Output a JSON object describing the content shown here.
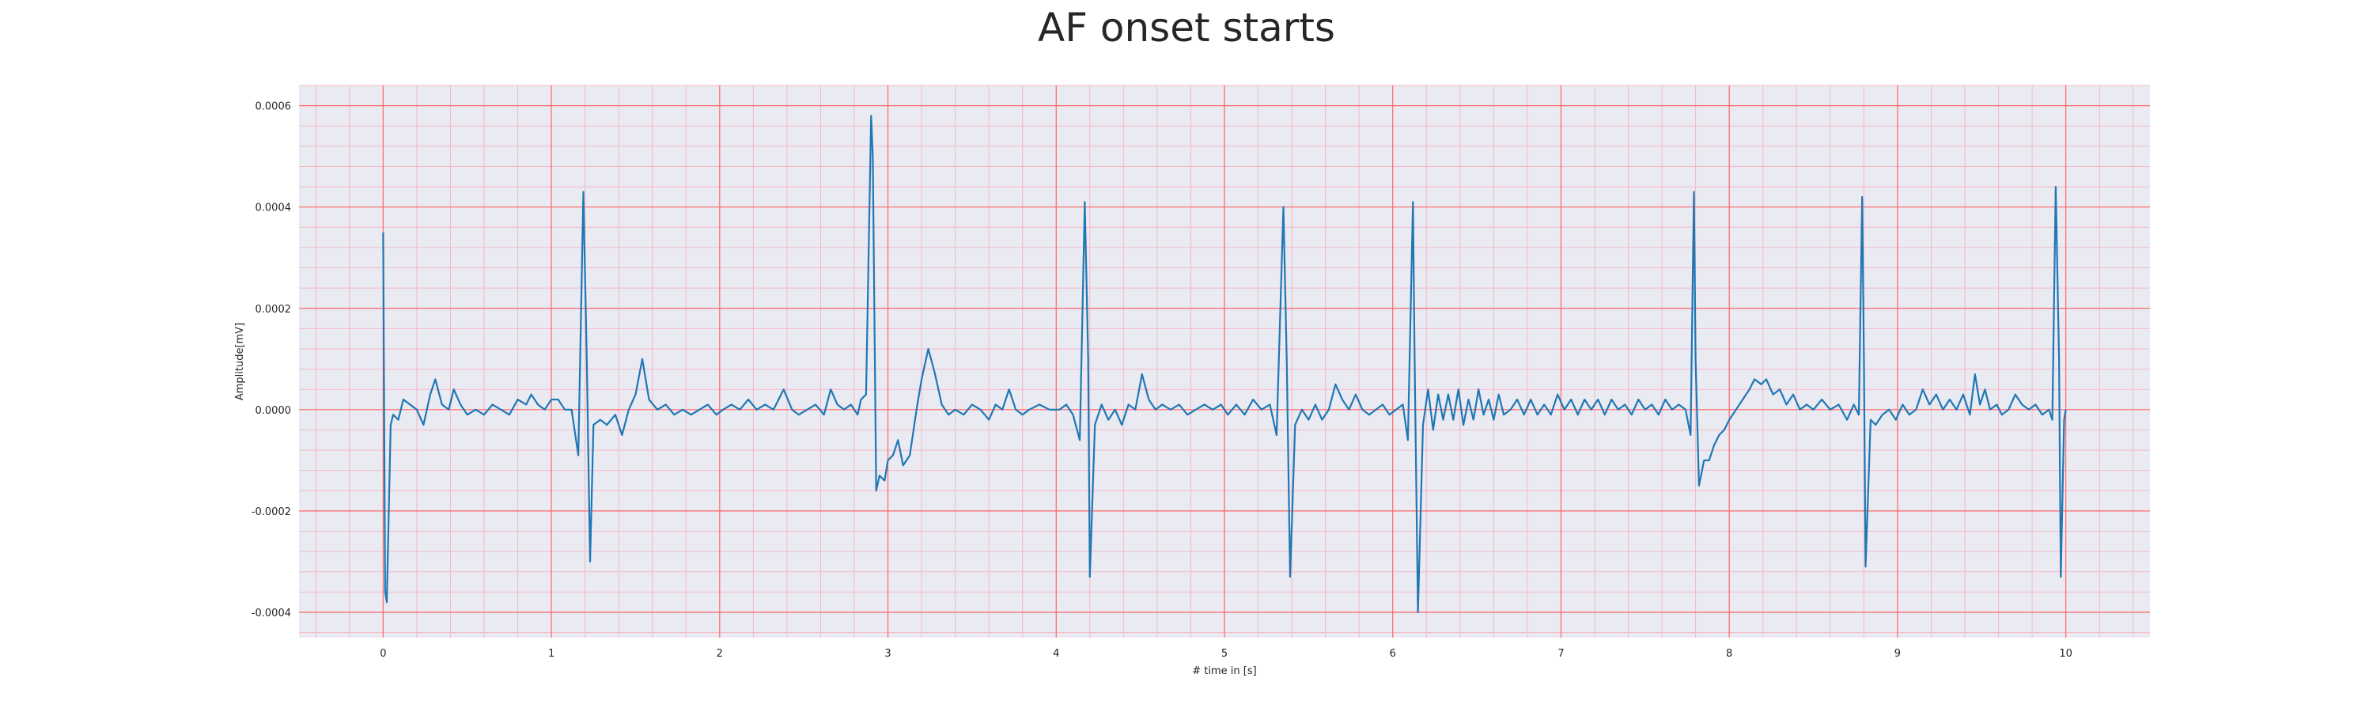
{
  "chart_data": {
    "type": "line",
    "title": "AF onset starts",
    "xlabel": "# time in [s]",
    "ylabel": "Amplitude[mV]",
    "xlim": [
      -0.5,
      10.5
    ],
    "ylim": [
      -0.00045,
      0.00064
    ],
    "xticks": [
      "0",
      "1",
      "2",
      "3",
      "4",
      "5",
      "6",
      "7",
      "8",
      "9",
      "10"
    ],
    "yticks": [
      "-0.0004",
      "-0.0002",
      "0.0000",
      "0.0002",
      "0.0004",
      "0.0006"
    ],
    "grid": true,
    "minor_grid": true,
    "colors": {
      "line": "#1f77b4",
      "background": "#eaeaf2",
      "major_grid": "#ff6666",
      "minor_grid": "#f4b8c4"
    },
    "series": [
      {
        "points": [
          [
            0.0,
            0.00035
          ],
          [
            0.012,
            -0.00036
          ],
          [
            0.022,
            -0.00038
          ],
          [
            0.045,
            -3e-05
          ],
          [
            0.06,
            -1e-05
          ],
          [
            0.09,
            -2e-05
          ],
          [
            0.12,
            2e-05
          ],
          [
            0.16,
            1e-05
          ],
          [
            0.2,
            0.0
          ],
          [
            0.24,
            -3e-05
          ],
          [
            0.28,
            3e-05
          ],
          [
            0.31,
            6e-05
          ],
          [
            0.35,
            1e-05
          ],
          [
            0.39,
            0.0
          ],
          [
            0.42,
            4e-05
          ],
          [
            0.46,
            1e-05
          ],
          [
            0.5,
            -1e-05
          ],
          [
            0.55,
            0.0
          ],
          [
            0.6,
            -1e-05
          ],
          [
            0.65,
            1e-05
          ],
          [
            0.7,
            0.0
          ],
          [
            0.75,
            -1e-05
          ],
          [
            0.8,
            2e-05
          ],
          [
            0.85,
            1e-05
          ],
          [
            0.88,
            3e-05
          ],
          [
            0.92,
            1e-05
          ],
          [
            0.96,
            0.0
          ],
          [
            1.0,
            2e-05
          ],
          [
            1.04,
            2e-05
          ],
          [
            1.08,
            0.0
          ],
          [
            1.12,
            0.0
          ],
          [
            1.16,
            -9e-05
          ],
          [
            1.19,
            0.00043
          ],
          [
            1.21,
            0.0001
          ],
          [
            1.23,
            -0.0003
          ],
          [
            1.25,
            -3e-05
          ],
          [
            1.29,
            -2e-05
          ],
          [
            1.33,
            -3e-05
          ],
          [
            1.38,
            -1e-05
          ],
          [
            1.42,
            -5e-05
          ],
          [
            1.46,
            0.0
          ],
          [
            1.5,
            3e-05
          ],
          [
            1.54,
            0.0001
          ],
          [
            1.58,
            2e-05
          ],
          [
            1.63,
            0.0
          ],
          [
            1.68,
            1e-05
          ],
          [
            1.73,
            -1e-05
          ],
          [
            1.78,
            0.0
          ],
          [
            1.83,
            -1e-05
          ],
          [
            1.88,
            0.0
          ],
          [
            1.93,
            1e-05
          ],
          [
            1.98,
            -1e-05
          ],
          [
            2.02,
            0.0
          ],
          [
            2.07,
            1e-05
          ],
          [
            2.12,
            0.0
          ],
          [
            2.17,
            2e-05
          ],
          [
            2.22,
            0.0
          ],
          [
            2.27,
            1e-05
          ],
          [
            2.32,
            0.0
          ],
          [
            2.38,
            4e-05
          ],
          [
            2.43,
            0.0
          ],
          [
            2.47,
            -1e-05
          ],
          [
            2.52,
            0.0
          ],
          [
            2.57,
            1e-05
          ],
          [
            2.62,
            -1e-05
          ],
          [
            2.66,
            4e-05
          ],
          [
            2.7,
            1e-05
          ],
          [
            2.74,
            0.0
          ],
          [
            2.78,
            1e-05
          ],
          [
            2.82,
            -1e-05
          ],
          [
            2.84,
            2e-05
          ],
          [
            2.87,
            3e-05
          ],
          [
            2.9,
            0.00058
          ],
          [
            2.91,
            0.0005
          ],
          [
            2.93,
            -0.00016
          ],
          [
            2.95,
            -0.00013
          ],
          [
            2.98,
            -0.00014
          ],
          [
            3.0,
            -0.0001
          ],
          [
            3.03,
            -9e-05
          ],
          [
            3.06,
            -6e-05
          ],
          [
            3.09,
            -0.00011
          ],
          [
            3.13,
            -9e-05
          ],
          [
            3.17,
            0.0
          ],
          [
            3.2,
            6e-05
          ],
          [
            3.24,
            0.00012
          ],
          [
            3.28,
            7e-05
          ],
          [
            3.32,
            1e-05
          ],
          [
            3.36,
            -1e-05
          ],
          [
            3.4,
            0.0
          ],
          [
            3.45,
            -1e-05
          ],
          [
            3.5,
            1e-05
          ],
          [
            3.55,
            0.0
          ],
          [
            3.6,
            -2e-05
          ],
          [
            3.64,
            1e-05
          ],
          [
            3.68,
            0.0
          ],
          [
            3.72,
            4e-05
          ],
          [
            3.76,
            0.0
          ],
          [
            3.8,
            -1e-05
          ],
          [
            3.84,
            0.0
          ],
          [
            3.9,
            1e-05
          ],
          [
            3.96,
            0.0
          ],
          [
            4.02,
            0.0
          ],
          [
            4.06,
            1e-05
          ],
          [
            4.1,
            -1e-05
          ],
          [
            4.14,
            -6e-05
          ],
          [
            4.17,
            0.00041
          ],
          [
            4.19,
            0.0001
          ],
          [
            4.2,
            -0.00033
          ],
          [
            4.23,
            -3e-05
          ],
          [
            4.27,
            1e-05
          ],
          [
            4.31,
            -2e-05
          ],
          [
            4.35,
            0.0
          ],
          [
            4.39,
            -3e-05
          ],
          [
            4.43,
            1e-05
          ],
          [
            4.47,
            0.0
          ],
          [
            4.51,
            7e-05
          ],
          [
            4.55,
            2e-05
          ],
          [
            4.59,
            0.0
          ],
          [
            4.63,
            1e-05
          ],
          [
            4.68,
            0.0
          ],
          [
            4.73,
            1e-05
          ],
          [
            4.78,
            -1e-05
          ],
          [
            4.83,
            0.0
          ],
          [
            4.88,
            1e-05
          ],
          [
            4.93,
            0.0
          ],
          [
            4.98,
            1e-05
          ],
          [
            5.02,
            -1e-05
          ],
          [
            5.07,
            1e-05
          ],
          [
            5.12,
            -1e-05
          ],
          [
            5.17,
            2e-05
          ],
          [
            5.22,
            0.0
          ],
          [
            5.27,
            1e-05
          ],
          [
            5.31,
            -5e-05
          ],
          [
            5.35,
            0.0004
          ],
          [
            5.37,
            0.0001
          ],
          [
            5.39,
            -0.00033
          ],
          [
            5.42,
            -3e-05
          ],
          [
            5.46,
            0.0
          ],
          [
            5.5,
            -2e-05
          ],
          [
            5.54,
            1e-05
          ],
          [
            5.58,
            -2e-05
          ],
          [
            5.62,
            0.0
          ],
          [
            5.66,
            5e-05
          ],
          [
            5.7,
            2e-05
          ],
          [
            5.74,
            0.0
          ],
          [
            5.78,
            3e-05
          ],
          [
            5.82,
            0.0
          ],
          [
            5.86,
            -1e-05
          ],
          [
            5.9,
            0.0
          ],
          [
            5.94,
            1e-05
          ],
          [
            5.98,
            -1e-05
          ],
          [
            6.02,
            0.0
          ],
          [
            6.06,
            1e-05
          ],
          [
            6.09,
            -6e-05
          ],
          [
            6.12,
            0.00041
          ],
          [
            6.13,
            0.0001
          ],
          [
            6.15,
            -0.0004
          ],
          [
            6.18,
            -3e-05
          ],
          [
            6.21,
            4e-05
          ],
          [
            6.24,
            -4e-05
          ],
          [
            6.27,
            3e-05
          ],
          [
            6.3,
            -2e-05
          ],
          [
            6.33,
            3e-05
          ],
          [
            6.36,
            -2e-05
          ],
          [
            6.39,
            4e-05
          ],
          [
            6.42,
            -3e-05
          ],
          [
            6.45,
            2e-05
          ],
          [
            6.48,
            -2e-05
          ],
          [
            6.51,
            4e-05
          ],
          [
            6.54,
            -1e-05
          ],
          [
            6.57,
            2e-05
          ],
          [
            6.6,
            -2e-05
          ],
          [
            6.63,
            3e-05
          ],
          [
            6.66,
            -1e-05
          ],
          [
            6.7,
            0.0
          ],
          [
            6.74,
            2e-05
          ],
          [
            6.78,
            -1e-05
          ],
          [
            6.82,
            2e-05
          ],
          [
            6.86,
            -1e-05
          ],
          [
            6.9,
            1e-05
          ],
          [
            6.94,
            -1e-05
          ],
          [
            6.98,
            3e-05
          ],
          [
            7.02,
            0.0
          ],
          [
            7.06,
            2e-05
          ],
          [
            7.1,
            -1e-05
          ],
          [
            7.14,
            2e-05
          ],
          [
            7.18,
            0.0
          ],
          [
            7.22,
            2e-05
          ],
          [
            7.26,
            -1e-05
          ],
          [
            7.3,
            2e-05
          ],
          [
            7.34,
            0.0
          ],
          [
            7.38,
            1e-05
          ],
          [
            7.42,
            -1e-05
          ],
          [
            7.46,
            2e-05
          ],
          [
            7.5,
            0.0
          ],
          [
            7.54,
            1e-05
          ],
          [
            7.58,
            -1e-05
          ],
          [
            7.62,
            2e-05
          ],
          [
            7.66,
            0.0
          ],
          [
            7.7,
            1e-05
          ],
          [
            7.74,
            0.0
          ],
          [
            7.77,
            -5e-05
          ],
          [
            7.79,
            0.00043
          ],
          [
            7.8,
            0.0001
          ],
          [
            7.82,
            -0.00015
          ],
          [
            7.85,
            -0.0001
          ],
          [
            7.88,
            -0.0001
          ],
          [
            7.91,
            -7e-05
          ],
          [
            7.94,
            -5e-05
          ],
          [
            7.97,
            -4e-05
          ],
          [
            8.0,
            -2e-05
          ],
          [
            8.04,
            0.0
          ],
          [
            8.08,
            2e-05
          ],
          [
            8.12,
            4e-05
          ],
          [
            8.15,
            6e-05
          ],
          [
            8.19,
            5e-05
          ],
          [
            8.22,
            6e-05
          ],
          [
            8.26,
            3e-05
          ],
          [
            8.3,
            4e-05
          ],
          [
            8.34,
            1e-05
          ],
          [
            8.38,
            3e-05
          ],
          [
            8.42,
            0.0
          ],
          [
            8.46,
            1e-05
          ],
          [
            8.5,
            0.0
          ],
          [
            8.55,
            2e-05
          ],
          [
            8.6,
            0.0
          ],
          [
            8.65,
            1e-05
          ],
          [
            8.7,
            -2e-05
          ],
          [
            8.74,
            1e-05
          ],
          [
            8.77,
            -1e-05
          ],
          [
            8.79,
            0.00042
          ],
          [
            8.8,
            0.0001
          ],
          [
            8.81,
            -0.00031
          ],
          [
            8.84,
            -2e-05
          ],
          [
            8.87,
            -3e-05
          ],
          [
            8.91,
            -1e-05
          ],
          [
            8.95,
            0.0
          ],
          [
            8.99,
            -2e-05
          ],
          [
            9.03,
            1e-05
          ],
          [
            9.07,
            -1e-05
          ],
          [
            9.11,
            0.0
          ],
          [
            9.15,
            4e-05
          ],
          [
            9.19,
            1e-05
          ],
          [
            9.23,
            3e-05
          ],
          [
            9.27,
            0.0
          ],
          [
            9.31,
            2e-05
          ],
          [
            9.35,
            0.0
          ],
          [
            9.39,
            3e-05
          ],
          [
            9.43,
            -1e-05
          ],
          [
            9.46,
            7e-05
          ],
          [
            9.49,
            1e-05
          ],
          [
            9.52,
            4e-05
          ],
          [
            9.55,
            0.0
          ],
          [
            9.59,
            1e-05
          ],
          [
            9.62,
            -1e-05
          ],
          [
            9.66,
            0.0
          ],
          [
            9.7,
            3e-05
          ],
          [
            9.74,
            1e-05
          ],
          [
            9.78,
            0.0
          ],
          [
            9.82,
            1e-05
          ],
          [
            9.86,
            -1e-05
          ],
          [
            9.9,
            0.0
          ],
          [
            9.92,
            -2e-05
          ],
          [
            9.94,
            0.00044
          ],
          [
            9.96,
            0.0001
          ],
          [
            9.97,
            -0.00033
          ],
          [
            9.99,
            -2e-05
          ],
          [
            10.0,
            0.0
          ]
        ]
      }
    ]
  }
}
